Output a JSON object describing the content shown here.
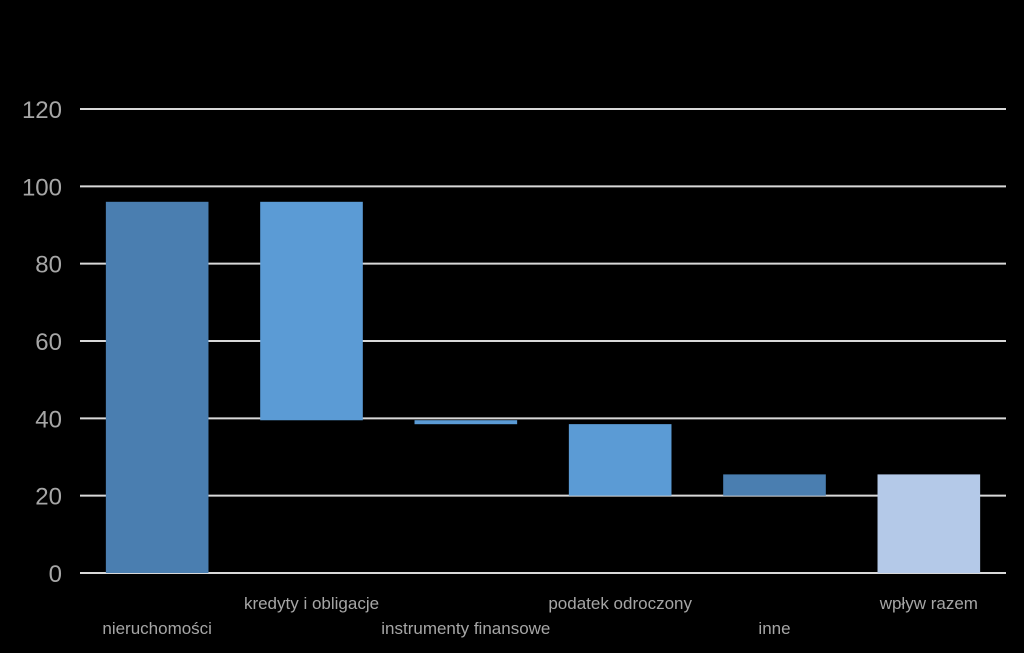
{
  "chart_data": {
    "type": "bar",
    "subtype": "waterfall",
    "categories": [
      "nieruchomości",
      "kredyty i obligacje",
      "instrumenty finansowe",
      "podatek odroczony",
      "inne",
      "wpływ razem"
    ],
    "bars": [
      {
        "category": "nieruchomości",
        "start": 0,
        "end": 96,
        "color": "#4a7eb0"
      },
      {
        "category": "kredyty i obligacje",
        "start": 96,
        "end": 39.5,
        "color": "#5b9bd5"
      },
      {
        "category": "instrumenty finansowe",
        "start": 39.5,
        "end": 38.5,
        "color": "#5b9bd5"
      },
      {
        "category": "podatek odroczony",
        "start": 38.5,
        "end": 20,
        "color": "#5b9bd5"
      },
      {
        "category": "inne",
        "start": 20,
        "end": 25.5,
        "color": "#4a7eb0"
      },
      {
        "category": "wpływ razem",
        "start": 0,
        "end": 25.5,
        "color": "#b4c9e8"
      }
    ],
    "yticks": [
      "0",
      "20",
      "40",
      "60",
      "80",
      "100",
      "120"
    ],
    "ylim": [
      0,
      120
    ],
    "grid": true,
    "legend": "none",
    "title": "",
    "xlabel": "",
    "ylabel": "",
    "colors": {
      "background": "#000000",
      "grid": "#d9d9d9",
      "text": "#a6a6a6"
    }
  }
}
